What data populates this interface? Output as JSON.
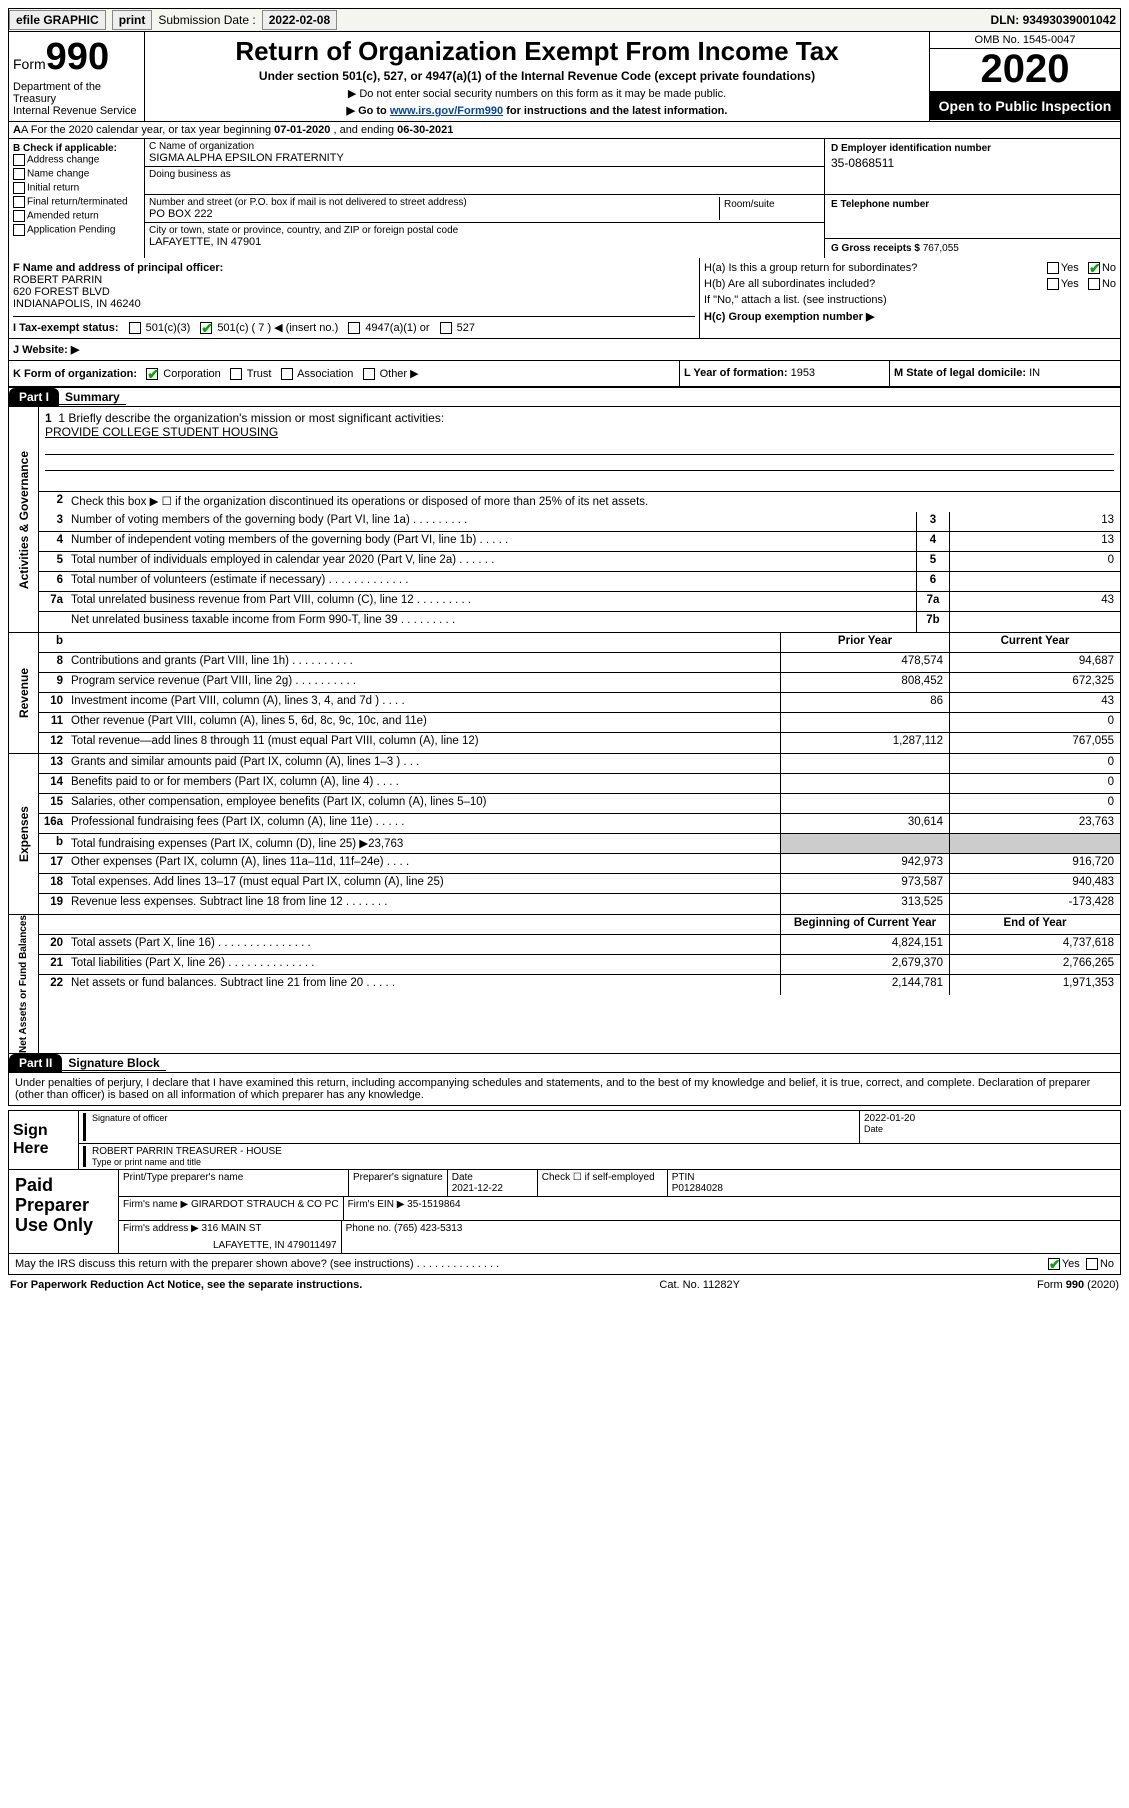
{
  "topbar": {
    "efile": "efile GRAPHIC",
    "print": "print",
    "subdate_lbl": "Submission Date :",
    "subdate": "2022-02-08",
    "dln_lbl": "DLN:",
    "dln": "93493039001042"
  },
  "header": {
    "form_prefix": "Form",
    "form_num": "990",
    "dept": "Department of the Treasury\nInternal Revenue Service",
    "title": "Return of Organization Exempt From Income Tax",
    "subtitle": "Under section 501(c), 527, or 4947(a)(1) of the Internal Revenue Code (except private foundations)",
    "note1": "▶ Do not enter social security numbers on this form as it may be made public.",
    "note2_pre": "▶ Go to ",
    "note2_link": "www.irs.gov/Form990",
    "note2_post": " for instructions and the latest information.",
    "omb": "OMB No. 1545-0047",
    "year": "2020",
    "public": "Open to Public Inspection"
  },
  "rowA": {
    "prefix": "A  For the 2020 calendar year, or tax year beginning ",
    "begin": "07-01-2020",
    "mid": " , and ending ",
    "end": "06-30-2021"
  },
  "entity": {
    "checkB_label": "B Check if applicable:",
    "checks": [
      "Address change",
      "Name change",
      "Initial return",
      "Final return/terminated",
      "Amended return",
      "Application Pending"
    ],
    "c_name_lbl": "C Name of organization",
    "c_name": "SIGMA ALPHA EPSILON FRATERNITY",
    "dba_lbl": "Doing business as",
    "dba": "",
    "addr_lbl": "Number and street (or P.O. box if mail is not delivered to street address)",
    "room_lbl": "Room/suite",
    "addr": "PO BOX 222",
    "city_lbl": "City or town, state or province, country, and ZIP or foreign postal code",
    "city": "LAFAYETTE, IN  47901",
    "d_ein_lbl": "D Employer identification number",
    "d_ein": "35-0868511",
    "e_tel_lbl": "E Telephone number",
    "e_tel": "",
    "g_gross_lbl": "G Gross receipts $",
    "g_gross": "767,055"
  },
  "fhi": {
    "f_lbl": "F Name and address of principal officer:",
    "f_name": "ROBERT PARRIN",
    "f_addr1": "620 FOREST BLVD",
    "f_addr2": "INDIANAPOLIS, IN  46240",
    "tax_lbl": "I   Tax-exempt status:",
    "tax_501c3": "501(c)(3)",
    "tax_501c": "501(c) ( 7 ) ◀ (insert no.)",
    "tax_4947": "4947(a)(1) or",
    "tax_527": "527",
    "ha_lbl": "H(a)  Is this a group return for subordinates?",
    "ha_yes": "Yes",
    "ha_no": "No",
    "hb_lbl": "H(b)  Are all subordinates included?",
    "hb_note": "If \"No,\" attach a list. (see instructions)",
    "hc_lbl": "H(c)  Group exemption number ▶"
  },
  "rowJ": {
    "lbl": "J   Website: ▶",
    "val": ""
  },
  "rowKLM": {
    "k_lbl": "K Form of organization:",
    "k_corp": "Corporation",
    "k_trust": "Trust",
    "k_assoc": "Association",
    "k_other": "Other ▶",
    "l_lbl": "L Year of formation:",
    "l_val": "1953",
    "m_lbl": "M State of legal domicile:",
    "m_val": "IN"
  },
  "part1": {
    "tab": "Part I",
    "title": "Summary",
    "mission_lbl": "1   Briefly describe the organization's mission or most significant activities:",
    "mission": "PROVIDE COLLEGE STUDENT HOUSING"
  },
  "gov": {
    "side": "Activities & Governance",
    "l2": "Check this box ▶ ☐  if the organization discontinued its operations or disposed of more than 25% of its net assets.",
    "rows": [
      {
        "n": "3",
        "d": "Number of voting members of the governing body (Part VI, line 1a)  .    .    .    .    .    .    .    .    .",
        "b": "3",
        "v": "13"
      },
      {
        "n": "4",
        "d": "Number of independent voting members of the governing body (Part VI, line 1b)  .    .    .    .    .",
        "b": "4",
        "v": "13"
      },
      {
        "n": "5",
        "d": "Total number of individuals employed in calendar year 2020 (Part V, line 2a)  .    .    .    .    .    .",
        "b": "5",
        "v": "0"
      },
      {
        "n": "6",
        "d": "Total number of volunteers (estimate if necessary)  .    .    .    .    .    .    .    .    .    .    .    .    .",
        "b": "6",
        "v": ""
      },
      {
        "n": "7a",
        "d": "Total unrelated business revenue from Part VIII, column (C), line 12  .    .    .    .    .    .    .    .    .",
        "b": "7a",
        "v": "43"
      },
      {
        "n": "",
        "d": "Net unrelated business taxable income from Form 990-T, line 39  .    .    .    .    .    .    .    .    .",
        "b": "7b",
        "v": ""
      }
    ]
  },
  "rev": {
    "side": "Revenue",
    "hdr": {
      "b": "b",
      "py": "Prior Year",
      "cy": "Current Year"
    },
    "rows": [
      {
        "n": "8",
        "d": "Contributions and grants (Part VIII, line 1h)  .    .    .    .    .    .    .    .    .    .",
        "py": "478,574",
        "cy": "94,687"
      },
      {
        "n": "9",
        "d": "Program service revenue (Part VIII, line 2g)  .    .    .    .    .    .    .    .    .    .",
        "py": "808,452",
        "cy": "672,325"
      },
      {
        "n": "10",
        "d": "Investment income (Part VIII, column (A), lines 3, 4, and 7d )  .    .    .    .",
        "py": "86",
        "cy": "43"
      },
      {
        "n": "11",
        "d": "Other revenue (Part VIII, column (A), lines 5, 6d, 8c, 9c, 10c, and 11e)",
        "py": "",
        "cy": "0"
      },
      {
        "n": "12",
        "d": "Total revenue—add lines 8 through 11 (must equal Part VIII, column (A), line 12)",
        "py": "1,287,112",
        "cy": "767,055"
      }
    ]
  },
  "exp": {
    "side": "Expenses",
    "rows": [
      {
        "n": "13",
        "d": "Grants and similar amounts paid (Part IX, column (A), lines 1–3 )  .    .    .",
        "py": "",
        "cy": "0"
      },
      {
        "n": "14",
        "d": "Benefits paid to or for members (Part IX, column (A), line 4)  .    .    .    .",
        "py": "",
        "cy": "0"
      },
      {
        "n": "15",
        "d": "Salaries, other compensation, employee benefits (Part IX, column (A), lines 5–10)",
        "py": "",
        "cy": "0"
      },
      {
        "n": "16a",
        "d": "Professional fundraising fees (Part IX, column (A), line 11e)  .    .    .    .    .",
        "py": "30,614",
        "cy": "23,763"
      },
      {
        "n": "b",
        "d": "Total fundraising expenses (Part IX, column (D), line 25) ▶23,763",
        "py": "—shade—",
        "cy": "—shade—"
      },
      {
        "n": "17",
        "d": "Other expenses (Part IX, column (A), lines 11a–11d, 11f–24e)  .    .    .    .",
        "py": "942,973",
        "cy": "916,720"
      },
      {
        "n": "18",
        "d": "Total expenses. Add lines 13–17 (must equal Part IX, column (A), line 25)",
        "py": "973,587",
        "cy": "940,483"
      },
      {
        "n": "19",
        "d": "Revenue less expenses. Subtract line 18 from line 12  .    .    .    .    .    .    .",
        "py": "313,525",
        "cy": "-173,428"
      }
    ]
  },
  "net": {
    "side": "Net Assets or Fund Balances",
    "hdr": {
      "py": "Beginning of Current Year",
      "cy": "End of Year"
    },
    "rows": [
      {
        "n": "20",
        "d": "Total assets (Part X, line 16)  .    .    .    .    .    .    .    .    .    .    .    .    .    .    .",
        "py": "4,824,151",
        "cy": "4,737,618"
      },
      {
        "n": "21",
        "d": "Total liabilities (Part X, line 26)  .    .    .    .    .    .    .    .    .    .    .    .    .    .",
        "py": "2,679,370",
        "cy": "2,766,265"
      },
      {
        "n": "22",
        "d": "Net assets or fund balances. Subtract line 21 from line 20  .    .    .    .    .",
        "py": "2,144,781",
        "cy": "1,971,353"
      }
    ]
  },
  "part2": {
    "tab": "Part II",
    "title": "Signature Block",
    "perjury": "Under penalties of perjury, I declare that I have examined this return, including accompanying schedules and statements, and to the best of my knowledge and belief, it is true, correct, and complete. Declaration of preparer (other than officer) is based on all information of which preparer has any knowledge."
  },
  "sign": {
    "label": "Sign Here",
    "sig_lbl": "Signature of officer",
    "date_lbl": "Date",
    "date": "2022-01-20",
    "name": "ROBERT PARRIN  TREASURER - HOUSE",
    "name_lbl": "Type or print name and title"
  },
  "paid": {
    "label": "Paid Preparer Use Only",
    "r1": {
      "c1": "Print/Type preparer's name",
      "c2": "Preparer's signature",
      "c3_lbl": "Date",
      "c3": "2021-12-22",
      "c4": "Check ☐ if self-employed",
      "c5_lbl": "PTIN",
      "c5": "P01284028"
    },
    "r2": {
      "lbl": "Firm's name    ▶",
      "val": "GIRARDOT STRAUCH & CO PC",
      "ein_lbl": "Firm's EIN ▶",
      "ein": "35-1519864"
    },
    "r3": {
      "lbl": "Firm's address ▶",
      "val": "316 MAIN ST",
      "ph_lbl": "Phone no.",
      "ph": "(765) 423-5313"
    },
    "r3b": "LAFAYETTE, IN  479011497"
  },
  "discuss": {
    "txt": "May the IRS discuss this return with the preparer shown above? (see instructions)  .    .    .    .    .    .    .    .    .    .    .    .    .    .",
    "yes": "Yes",
    "no": "No"
  },
  "footer": {
    "pra": "For Paperwork Reduction Act Notice, see the separate instructions.",
    "cat": "Cat. No. 11282Y",
    "form": "Form 990 (2020)"
  }
}
